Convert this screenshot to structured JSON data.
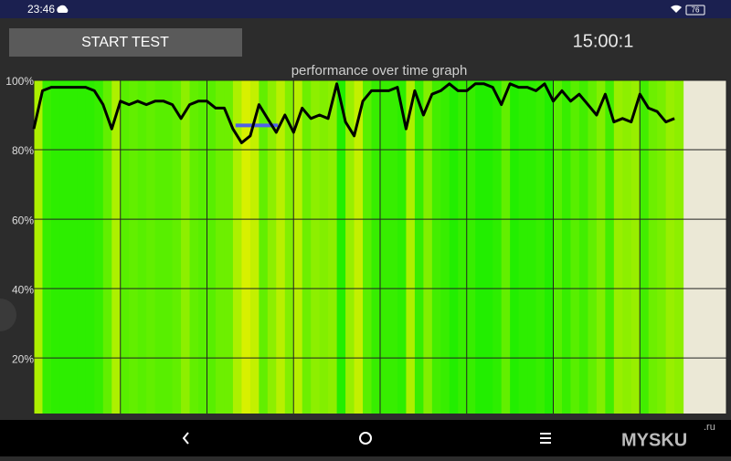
{
  "status_bar": {
    "time": "23:46",
    "battery": "76"
  },
  "button": {
    "label": "START TEST"
  },
  "timer": "15:00:1",
  "watermark": {
    "text": "MYSKU",
    "suffix": ".ru"
  },
  "chart_data": {
    "type": "line",
    "title": "performance over time graph",
    "x": [
      0,
      0.1,
      0.2,
      0.3,
      0.4,
      0.5,
      0.6,
      0.7,
      0.8,
      0.9,
      1.0,
      1.1,
      1.2,
      1.3,
      1.4,
      1.5,
      1.6,
      1.7,
      1.8,
      1.9,
      2.0,
      2.1,
      2.2,
      2.3,
      2.4,
      2.5,
      2.6,
      2.7,
      2.8,
      2.9,
      3.0,
      3.1,
      3.2,
      3.3,
      3.4,
      3.5,
      3.6,
      3.7,
      3.8,
      3.9,
      4.0,
      4.1,
      4.2,
      4.3,
      4.4,
      4.5,
      4.6,
      4.7,
      4.8,
      4.9,
      5.0,
      5.1,
      5.2,
      5.3,
      5.4,
      5.5,
      5.6,
      5.7,
      5.8,
      5.9,
      6.0,
      6.1,
      6.2,
      6.3,
      6.4,
      6.5,
      6.6,
      6.7,
      6.8,
      6.9,
      7.0,
      7.1,
      7.2,
      7.3,
      7.4
    ],
    "values": [
      86,
      97,
      98,
      98,
      98,
      98,
      98,
      97,
      93,
      86,
      94,
      93,
      94,
      93,
      94,
      94,
      93,
      89,
      93,
      94,
      94,
      92,
      92,
      86,
      82,
      84,
      93,
      89,
      85,
      90,
      85,
      92,
      89,
      90,
      89,
      99,
      88,
      84,
      94,
      97,
      97,
      97,
      98,
      86,
      97,
      90,
      96,
      97,
      99,
      97,
      97,
      99,
      99,
      98,
      93,
      99,
      98,
      98,
      97,
      99,
      94,
      97,
      94,
      96,
      93,
      90,
      96,
      88,
      89,
      88,
      96,
      92,
      91,
      88,
      89
    ],
    "color": "#000000",
    "fill_colors": [
      "#d8f000",
      "#22ee00"
    ],
    "reference_segment": {
      "x": [
        2.33,
        2.82
      ],
      "y": 87,
      "color": "#5060e8"
    },
    "xlim": [
      0,
      8
    ],
    "xticks": [
      0,
      1,
      2,
      3,
      4,
      5,
      6,
      7,
      8
    ],
    "ylim": [
      4,
      100
    ],
    "yticks": [
      {
        "value": 20,
        "label": "20%"
      },
      {
        "value": 40,
        "label": "40%"
      },
      {
        "value": 60,
        "label": "60%"
      },
      {
        "value": 80,
        "label": "80%"
      },
      {
        "value": 100,
        "label": "100%"
      }
    ],
    "grid": true
  }
}
